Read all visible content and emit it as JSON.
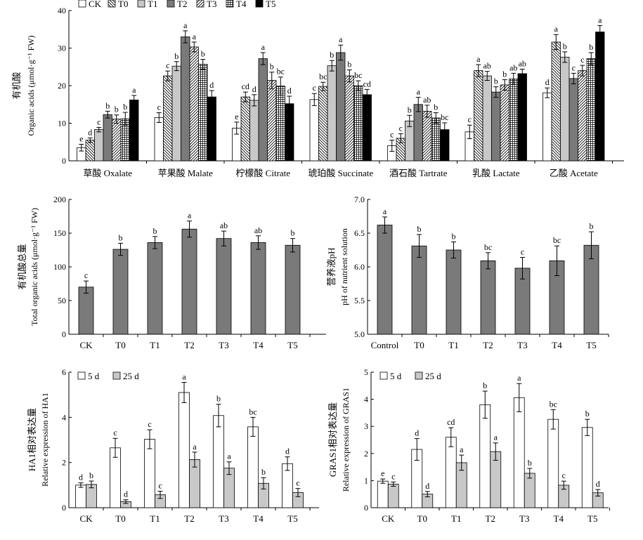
{
  "chart_data": [
    {
      "id": "organic",
      "type": "bar",
      "ylabel_cn": "有机酸",
      "ylabel": "Organic acids (μmol·g⁻¹ FW)",
      "ylim": [
        0,
        40
      ],
      "yticks": [
        "0",
        "10",
        "20",
        "30",
        "40"
      ],
      "categories": [
        "草酸 Oxalate",
        "苹果酸 Malate",
        "柠檬酸 Citrate",
        "琥珀酸 Succinate",
        "酒石酸 Tartrate",
        "乳酸 Lactate",
        "乙酸 Acetate"
      ],
      "legend_position": "top-left",
      "series": [
        {
          "name": "CK",
          "fill": "white",
          "values": [
            3.5,
            11.5,
            8.7,
            16.3,
            4.0,
            7.7,
            18.1
          ],
          "errors": [
            0.9,
            1.3,
            1.6,
            1.6,
            1.5,
            1.8,
            1.3
          ],
          "letters": [
            "e",
            "c",
            "e",
            "c",
            "c",
            "c",
            "d"
          ]
        },
        {
          "name": "T0",
          "fill": "hatch-back",
          "values": [
            5.5,
            22.6,
            17.0,
            19.8,
            6.0,
            24.0,
            31.6
          ],
          "errors": [
            0.6,
            1.3,
            1.3,
            1.1,
            1.2,
            1.6,
            2.0
          ],
          "letters": [
            "d",
            "c",
            "cd",
            "bc",
            "c",
            "a",
            "a"
          ]
        },
        {
          "name": "T1",
          "fill": "lightgray",
          "values": [
            8.3,
            25.2,
            16.1,
            25.3,
            10.6,
            22.6,
            27.6
          ],
          "errors": [
            0.6,
            1.2,
            1.5,
            1.4,
            1.5,
            1.2,
            1.4
          ],
          "letters": [
            "c",
            "b",
            "d",
            "b",
            "b",
            "ab",
            "b"
          ]
        },
        {
          "name": "T2",
          "fill": "gray",
          "values": [
            12.3,
            33.0,
            27.2,
            28.8,
            15.0,
            18.3,
            21.9
          ],
          "errors": [
            0.9,
            1.6,
            1.6,
            2.0,
            1.9,
            1.4,
            1.4
          ],
          "letters": [
            "b",
            "a",
            "a",
            "a",
            "a",
            "b",
            "c"
          ]
        },
        {
          "name": "T3",
          "fill": "hatch-fwd",
          "values": [
            11.1,
            30.3,
            21.4,
            22.6,
            13.2,
            20.2,
            24.0
          ],
          "errors": [
            1.1,
            1.3,
            2.2,
            1.6,
            1.6,
            1.4,
            1.4
          ],
          "letters": [
            "b",
            "a",
            "b",
            "b",
            "ab",
            "b",
            "c"
          ]
        },
        {
          "name": "T4",
          "fill": "grid",
          "values": [
            11.2,
            25.7,
            19.9,
            20.0,
            11.4,
            21.8,
            27.2
          ],
          "errors": [
            1.7,
            1.3,
            2.4,
            1.3,
            1.4,
            1.5,
            1.6
          ],
          "letters": [
            "b",
            "b",
            "bc",
            "bc",
            "b",
            "ab",
            "b"
          ]
        },
        {
          "name": "T5",
          "fill": "black",
          "values": [
            16.2,
            17.0,
            15.2,
            17.6,
            8.3,
            23.2,
            34.3
          ],
          "errors": [
            1.2,
            1.7,
            2.0,
            1.4,
            1.8,
            1.2,
            1.7
          ],
          "letters": [
            "a",
            "d",
            "d",
            "cd",
            "bc",
            "ab",
            "a"
          ]
        }
      ]
    },
    {
      "id": "total",
      "type": "bar",
      "ylabel_cn": "有机酸总量",
      "ylabel": "Total organic acids (μmol·g⁻¹ FW)",
      "ylim": [
        0,
        200
      ],
      "yticks": [
        "0",
        "50",
        "100",
        "150",
        "200"
      ],
      "categories": [
        "CK",
        "T0",
        "T1",
        "T2",
        "T3",
        "T4",
        "T5"
      ],
      "values": [
        70,
        126,
        136,
        156,
        142,
        136,
        132
      ],
      "errors": [
        9,
        9,
        9,
        12,
        11,
        10,
        10
      ],
      "letters": [
        "c",
        "b",
        "b",
        "a",
        "ab",
        "ab",
        "b"
      ]
    },
    {
      "id": "ph",
      "type": "bar",
      "ylabel_cn": "营养液pH",
      "ylabel": "pH of nutrient solution",
      "ylim": [
        5.0,
        7.0
      ],
      "yticks": [
        "5.0",
        "5.5",
        "6.0",
        "6.5",
        "7.0"
      ],
      "categories": [
        "Control",
        "T0",
        "T1",
        "T2",
        "T3",
        "T4",
        "T5"
      ],
      "values": [
        6.62,
        6.31,
        6.25,
        6.09,
        5.98,
        6.09,
        6.32
      ],
      "errors": [
        0.12,
        0.17,
        0.12,
        0.12,
        0.16,
        0.22,
        0.2
      ],
      "letters": [
        "a",
        "b",
        "b",
        "bc",
        "c",
        "bc",
        "b"
      ]
    },
    {
      "id": "ha1",
      "type": "bar",
      "ylabel_cn": "HA1相对表达量",
      "ylabel": "Relative expression of HA1",
      "ylim": [
        0,
        6
      ],
      "yticks": [
        "0",
        "2",
        "4",
        "6"
      ],
      "categories": [
        "CK",
        "T0",
        "T1",
        "T2",
        "T3",
        "T4",
        "T5"
      ],
      "legend_position": "top-left",
      "series": [
        {
          "name": "5 d",
          "fill": "white",
          "values": [
            1.0,
            2.65,
            3.03,
            5.1,
            4.08,
            3.58,
            1.95
          ],
          "errors": [
            0.1,
            0.42,
            0.42,
            0.45,
            0.5,
            0.42,
            0.3
          ],
          "letters": [
            "d",
            "c",
            "c",
            "a",
            "b",
            "bc",
            "d"
          ]
        },
        {
          "name": "25 d",
          "fill": "lightgray",
          "values": [
            1.03,
            0.27,
            0.57,
            2.13,
            1.75,
            1.08,
            0.67
          ],
          "errors": [
            0.15,
            0.08,
            0.16,
            0.33,
            0.28,
            0.25,
            0.18
          ],
          "letters": [
            "b",
            "d",
            "c",
            "a",
            "a",
            "b",
            "c"
          ]
        }
      ]
    },
    {
      "id": "gras1",
      "type": "bar",
      "ylabel_cn": "GRAS1相对表达量",
      "ylabel": "Relative expression of GRAS1",
      "ylim": [
        0,
        5
      ],
      "yticks": [
        "0",
        "1",
        "2",
        "3",
        "4",
        "5"
      ],
      "categories": [
        "CK",
        "T0",
        "T1",
        "T2",
        "T3",
        "T4",
        "T5"
      ],
      "legend_position": "top-left",
      "series": [
        {
          "name": "5 d",
          "fill": "white",
          "values": [
            0.98,
            2.15,
            2.6,
            3.8,
            4.06,
            3.26,
            2.96
          ],
          "errors": [
            0.08,
            0.4,
            0.35,
            0.5,
            0.52,
            0.36,
            0.3
          ],
          "letters": [
            "e",
            "d",
            "cd",
            "b",
            "a",
            "bc",
            "b"
          ]
        },
        {
          "name": "25 d",
          "fill": "lightgray",
          "values": [
            0.87,
            0.5,
            1.66,
            2.07,
            1.27,
            0.83,
            0.55
          ],
          "errors": [
            0.08,
            0.1,
            0.28,
            0.32,
            0.18,
            0.15,
            0.12
          ],
          "letters": [
            "c",
            "d",
            "a",
            "a",
            "b",
            "c",
            "d"
          ]
        }
      ]
    }
  ]
}
